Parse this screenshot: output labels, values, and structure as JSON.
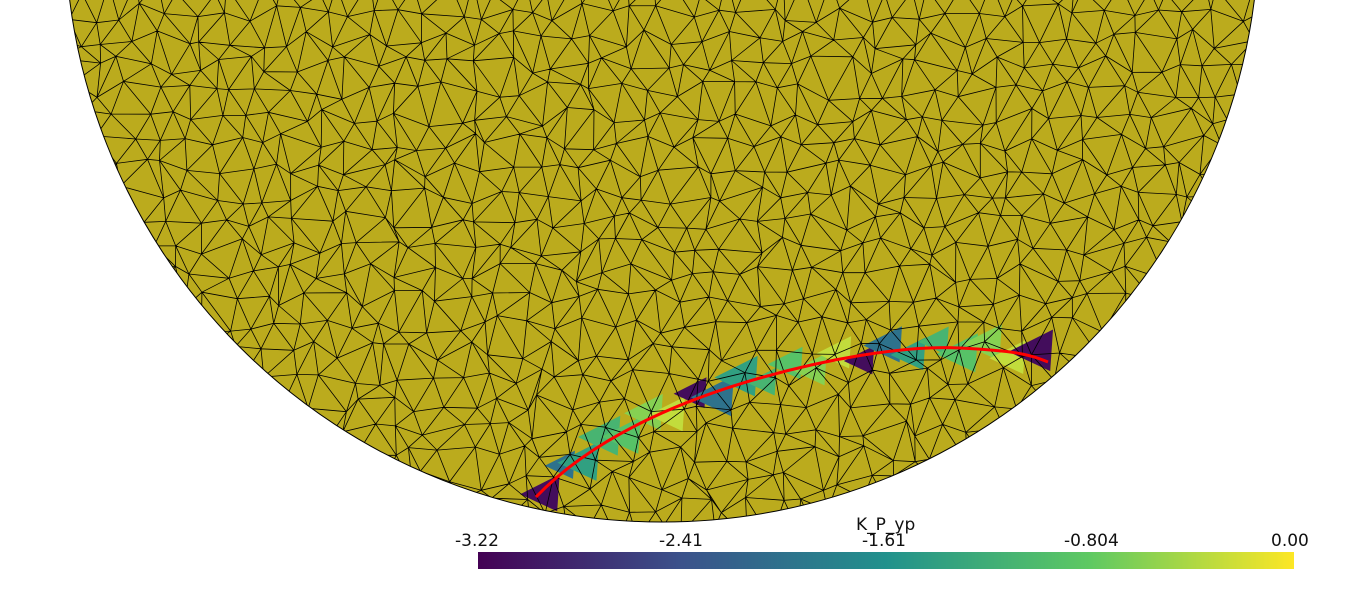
{
  "scene": {
    "field_name": "K_P_yp",
    "colormap": "viridis",
    "mesh_fill_color": "#bbab1d",
    "mesh_edge_color": "#000000",
    "fracture_line_color": "#ff0000",
    "background_color": "#ffffff"
  },
  "colorbar": {
    "title": "K_P_yp",
    "min": -3.22,
    "max": 0.0,
    "tick_labels": [
      "-3.22",
      "-2.41",
      "-1.61",
      "-0.804",
      "0.00"
    ],
    "tick_values": [
      -3.22,
      -2.41,
      -1.61,
      -0.804,
      0.0
    ],
    "colors": [
      "#440154",
      "#3b528b",
      "#21918c",
      "#5ec962",
      "#fde725"
    ]
  },
  "highlighted_cells": [
    {
      "value": -3.1
    },
    {
      "value": -2.0
    },
    {
      "value": -1.4
    },
    {
      "value": -1.1
    },
    {
      "value": -0.9
    },
    {
      "value": -0.6
    },
    {
      "value": -0.3
    }
  ]
}
